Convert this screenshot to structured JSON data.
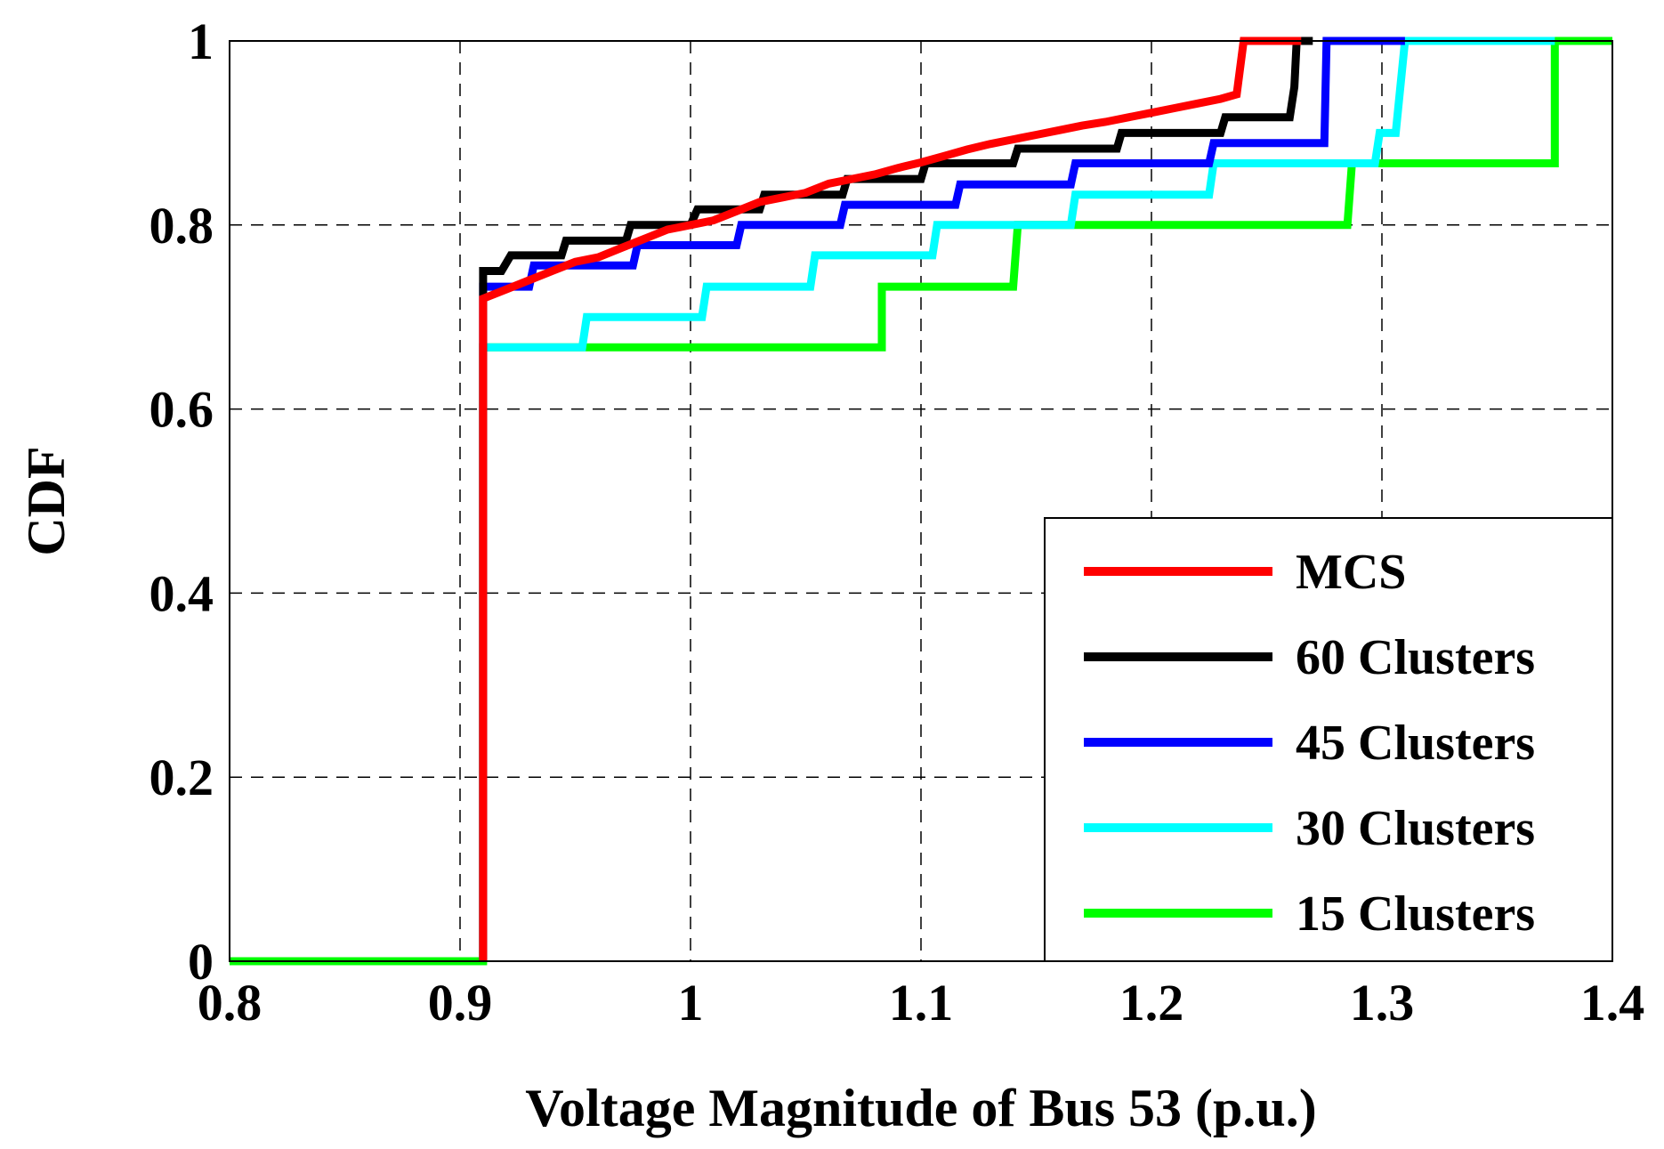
{
  "chart_data": {
    "type": "line",
    "step": true,
    "xlabel": "Voltage Magnitude of Bus 53 (p.u.)",
    "ylabel": "CDF",
    "xlim": [
      0.8,
      1.4
    ],
    "ylim": [
      0,
      1
    ],
    "xticks": [
      "0.8",
      "0.9",
      "1",
      "1.1",
      "1.2",
      "1.3",
      "1.4"
    ],
    "yticks": [
      "0",
      "0.2",
      "0.4",
      "0.6",
      "0.8",
      "1"
    ],
    "grid": true,
    "legend_position": "bottom-right",
    "series": [
      {
        "name": "MCS",
        "color": "#ff0000",
        "points": [
          [
            0.91,
            0
          ],
          [
            0.91,
            0.72
          ],
          [
            0.92,
            0.73
          ],
          [
            0.93,
            0.74
          ],
          [
            0.94,
            0.75
          ],
          [
            0.95,
            0.76
          ],
          [
            0.96,
            0.765
          ],
          [
            0.97,
            0.775
          ],
          [
            0.98,
            0.785
          ],
          [
            0.99,
            0.795
          ],
          [
            1.0,
            0.8
          ],
          [
            1.01,
            0.805
          ],
          [
            1.02,
            0.815
          ],
          [
            1.03,
            0.825
          ],
          [
            1.04,
            0.83
          ],
          [
            1.05,
            0.835
          ],
          [
            1.06,
            0.845
          ],
          [
            1.07,
            0.85
          ],
          [
            1.08,
            0.855
          ],
          [
            1.09,
            0.862
          ],
          [
            1.1,
            0.868
          ],
          [
            1.11,
            0.875
          ],
          [
            1.12,
            0.882
          ],
          [
            1.13,
            0.888
          ],
          [
            1.14,
            0.893
          ],
          [
            1.15,
            0.898
          ],
          [
            1.16,
            0.903
          ],
          [
            1.17,
            0.908
          ],
          [
            1.18,
            0.912
          ],
          [
            1.19,
            0.917
          ],
          [
            1.2,
            0.922
          ],
          [
            1.21,
            0.927
          ],
          [
            1.22,
            0.932
          ],
          [
            1.23,
            0.937
          ],
          [
            1.237,
            0.942
          ],
          [
            1.24,
            1.0
          ],
          [
            1.265,
            1.0
          ]
        ]
      },
      {
        "name": "60 Clusters",
        "color": "#000000",
        "points": [
          [
            0.91,
            0
          ],
          [
            0.91,
            0.75
          ],
          [
            0.918,
            0.75
          ],
          [
            0.922,
            0.767
          ],
          [
            0.944,
            0.767
          ],
          [
            0.946,
            0.783
          ],
          [
            0.972,
            0.783
          ],
          [
            0.974,
            0.8
          ],
          [
            1.0,
            0.8
          ],
          [
            1.003,
            0.817
          ],
          [
            1.03,
            0.817
          ],
          [
            1.032,
            0.833
          ],
          [
            1.066,
            0.833
          ],
          [
            1.068,
            0.85
          ],
          [
            1.1,
            0.85
          ],
          [
            1.102,
            0.867
          ],
          [
            1.14,
            0.867
          ],
          [
            1.142,
            0.883
          ],
          [
            1.185,
            0.883
          ],
          [
            1.187,
            0.9
          ],
          [
            1.23,
            0.9
          ],
          [
            1.232,
            0.917
          ],
          [
            1.26,
            0.917
          ],
          [
            1.262,
            0.95
          ],
          [
            1.263,
            1.0
          ],
          [
            1.27,
            1.0
          ]
        ]
      },
      {
        "name": "45 Clusters",
        "color": "#0000ff",
        "points": [
          [
            0.91,
            0
          ],
          [
            0.91,
            0.667
          ],
          [
            0.91,
            0.733
          ],
          [
            0.93,
            0.733
          ],
          [
            0.932,
            0.756
          ],
          [
            0.975,
            0.756
          ],
          [
            0.977,
            0.778
          ],
          [
            1.02,
            0.778
          ],
          [
            1.022,
            0.8
          ],
          [
            1.065,
            0.8
          ],
          [
            1.067,
            0.822
          ],
          [
            1.115,
            0.822
          ],
          [
            1.117,
            0.844
          ],
          [
            1.165,
            0.844
          ],
          [
            1.167,
            0.867
          ],
          [
            1.225,
            0.867
          ],
          [
            1.227,
            0.889
          ],
          [
            1.275,
            0.889
          ],
          [
            1.276,
            1.0
          ],
          [
            1.31,
            1.0
          ]
        ]
      },
      {
        "name": "30 Clusters",
        "color": "#00ffff",
        "points": [
          [
            0.91,
            0
          ],
          [
            0.91,
            0.667
          ],
          [
            0.953,
            0.667
          ],
          [
            0.955,
            0.7
          ],
          [
            1.005,
            0.7
          ],
          [
            1.007,
            0.733
          ],
          [
            1.052,
            0.733
          ],
          [
            1.054,
            0.767
          ],
          [
            1.105,
            0.767
          ],
          [
            1.107,
            0.8
          ],
          [
            1.165,
            0.8
          ],
          [
            1.167,
            0.833
          ],
          [
            1.225,
            0.833
          ],
          [
            1.227,
            0.867
          ],
          [
            1.297,
            0.867
          ],
          [
            1.299,
            0.9
          ],
          [
            1.306,
            0.9
          ],
          [
            1.31,
            1.0
          ],
          [
            1.375,
            1.0
          ]
        ]
      },
      {
        "name": "15 Clusters",
        "color": "#00ff00",
        "points": [
          [
            0.8,
            0
          ],
          [
            0.91,
            0
          ],
          [
            0.91,
            0.667
          ],
          [
            1.083,
            0.667
          ],
          [
            1.083,
            0.733
          ],
          [
            1.14,
            0.733
          ],
          [
            1.142,
            0.8
          ],
          [
            1.285,
            0.8
          ],
          [
            1.287,
            0.867
          ],
          [
            1.375,
            0.867
          ],
          [
            1.375,
            1.0
          ],
          [
            1.4,
            1.0
          ]
        ]
      }
    ]
  }
}
